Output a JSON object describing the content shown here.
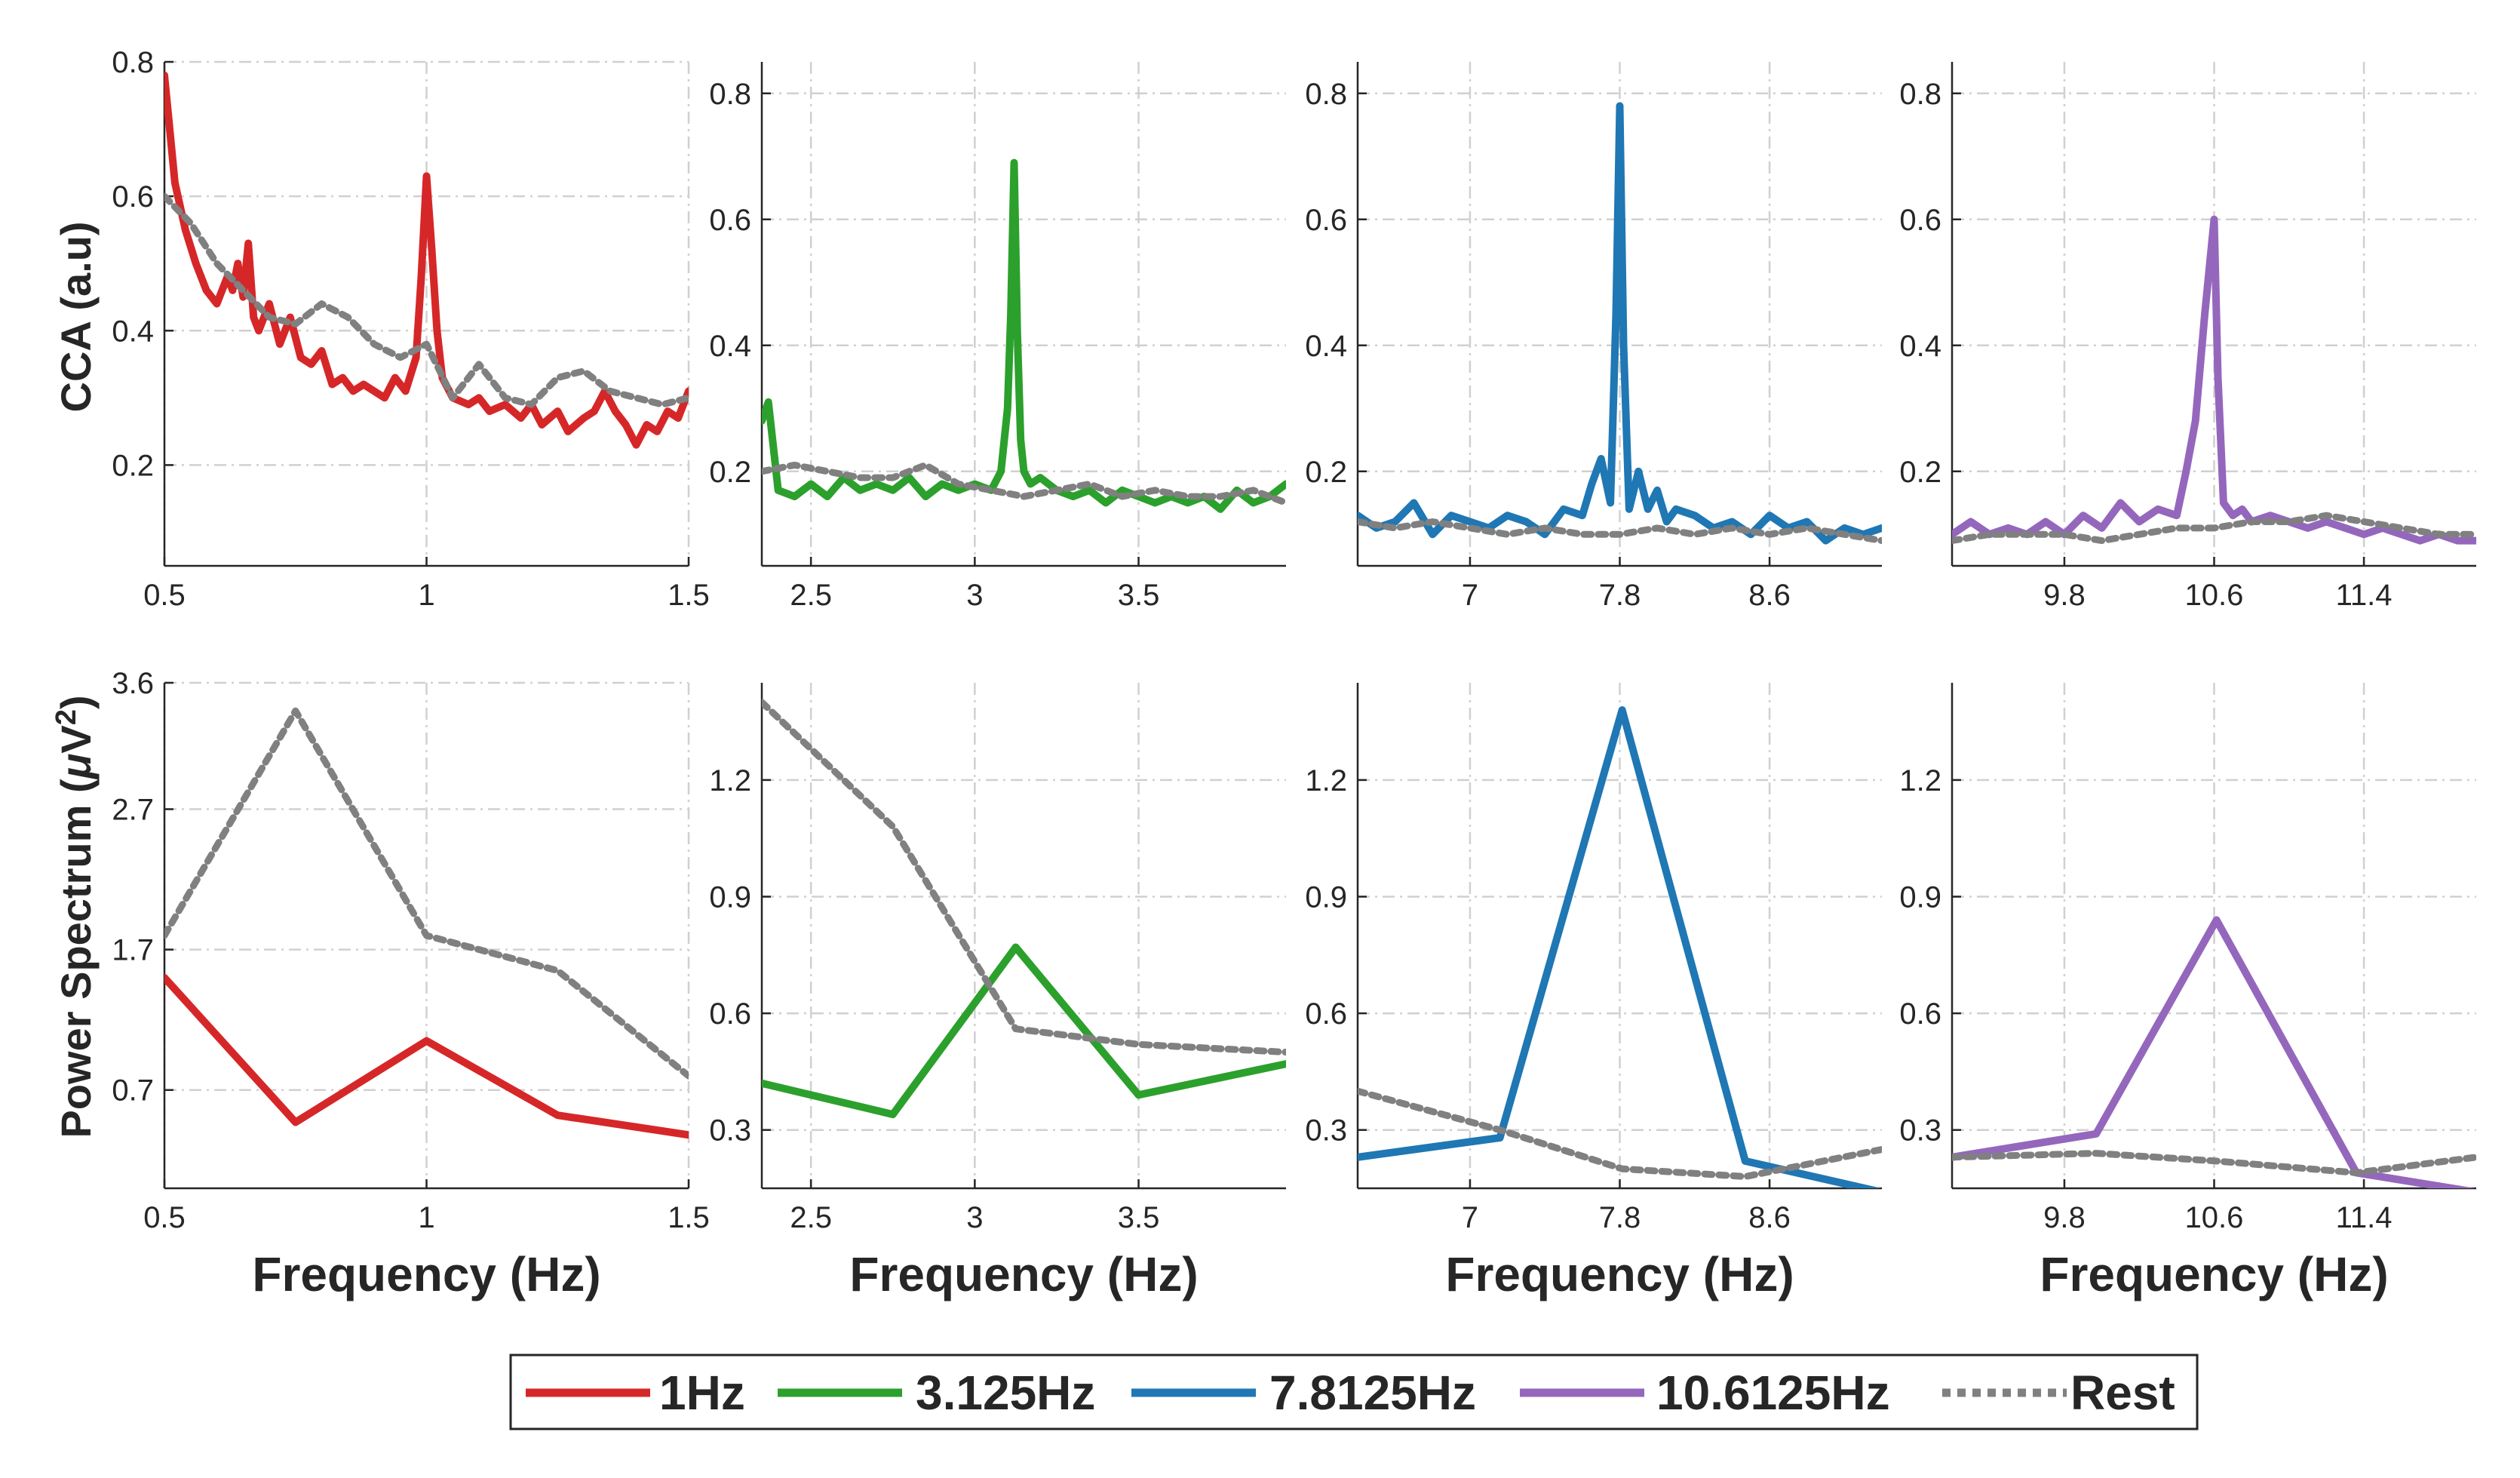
{
  "figure": {
    "cca_ylabel": "CCA (a.u)",
    "ps_ylabel_main": "Power Spectrum (",
    "ps_ylabel_mu": "μ",
    "ps_ylabel_unit": "V",
    "ps_ylabel_sup": "2",
    "ps_ylabel_close": ")"
  },
  "legend": {
    "items": [
      {
        "label": "1Hz",
        "color": "#d62728",
        "style": "solid"
      },
      {
        "label": "3.125Hz",
        "color": "#2ca02c",
        "style": "solid"
      },
      {
        "label": "7.8125Hz",
        "color": "#1f77b4",
        "style": "solid"
      },
      {
        "label": "10.6125Hz",
        "color": "#9467bd",
        "style": "solid"
      },
      {
        "label": "Rest",
        "color": "#808080",
        "style": "dotted"
      }
    ]
  },
  "chart_data": [
    {
      "type": "line",
      "row": "CCA",
      "color": "#d62728",
      "xlabel": "",
      "ylabel": "CCA (a.u)",
      "xlim": [
        0.5,
        1.5
      ],
      "ylim": [
        0.05,
        0.8
      ],
      "xticks": [
        0.5,
        1,
        1.5
      ],
      "xticklabels": [
        "0.5",
        "1",
        "1.5"
      ],
      "yticks": [
        0.2,
        0.4,
        0.6,
        0.8
      ],
      "yticklabels": [
        "0.2",
        "0.4",
        "0.6",
        "0.8"
      ],
      "series": [
        {
          "name": "1Hz",
          "x": [
            0.5,
            0.51,
            0.52,
            0.54,
            0.56,
            0.58,
            0.6,
            0.62,
            0.63,
            0.64,
            0.65,
            0.66,
            0.67,
            0.68,
            0.7,
            0.72,
            0.74,
            0.76,
            0.78,
            0.8,
            0.82,
            0.84,
            0.86,
            0.88,
            0.9,
            0.92,
            0.94,
            0.96,
            0.98,
            0.99,
            1.0,
            1.01,
            1.02,
            1.03,
            1.05,
            1.08,
            1.1,
            1.12,
            1.15,
            1.18,
            1.2,
            1.22,
            1.25,
            1.27,
            1.3,
            1.32,
            1.34,
            1.36,
            1.38,
            1.4,
            1.42,
            1.44,
            1.46,
            1.48,
            1.5
          ],
          "y": [
            0.78,
            0.7,
            0.62,
            0.55,
            0.5,
            0.46,
            0.44,
            0.48,
            0.46,
            0.5,
            0.45,
            0.53,
            0.42,
            0.4,
            0.44,
            0.38,
            0.42,
            0.36,
            0.35,
            0.37,
            0.32,
            0.33,
            0.31,
            0.32,
            0.31,
            0.3,
            0.33,
            0.31,
            0.36,
            0.48,
            0.63,
            0.52,
            0.4,
            0.33,
            0.3,
            0.29,
            0.3,
            0.28,
            0.29,
            0.27,
            0.29,
            0.26,
            0.28,
            0.25,
            0.27,
            0.28,
            0.31,
            0.28,
            0.26,
            0.23,
            0.26,
            0.25,
            0.28,
            0.27,
            0.31
          ]
        },
        {
          "name": "Rest",
          "x": [
            0.5,
            0.55,
            0.6,
            0.65,
            0.7,
            0.75,
            0.8,
            0.85,
            0.9,
            0.95,
            1.0,
            1.05,
            1.1,
            1.15,
            1.2,
            1.25,
            1.3,
            1.35,
            1.4,
            1.45,
            1.5
          ],
          "y": [
            0.6,
            0.56,
            0.5,
            0.46,
            0.42,
            0.41,
            0.44,
            0.42,
            0.38,
            0.36,
            0.38,
            0.3,
            0.35,
            0.3,
            0.29,
            0.33,
            0.34,
            0.31,
            0.3,
            0.29,
            0.3
          ]
        }
      ]
    },
    {
      "type": "line",
      "row": "CCA",
      "color": "#2ca02c",
      "xlabel": "",
      "ylabel": "",
      "xlim": [
        2.35,
        3.95
      ],
      "ylim": [
        0.05,
        0.85
      ],
      "xticks": [
        2.5,
        3,
        3.5
      ],
      "xticklabels": [
        "2.5",
        "3",
        "3.5"
      ],
      "yticks": [
        0.2,
        0.4,
        0.6,
        0.8
      ],
      "yticklabels": [
        "0.2",
        "0.4",
        "0.6",
        "0.8"
      ],
      "series": [
        {
          "name": "3.125Hz",
          "x": [
            2.35,
            2.37,
            2.4,
            2.45,
            2.5,
            2.55,
            2.6,
            2.65,
            2.7,
            2.75,
            2.8,
            2.85,
            2.9,
            2.95,
            3.0,
            3.05,
            3.08,
            3.1,
            3.11,
            3.12,
            3.13,
            3.14,
            3.15,
            3.17,
            3.2,
            3.25,
            3.3,
            3.35,
            3.4,
            3.45,
            3.5,
            3.55,
            3.6,
            3.65,
            3.7,
            3.75,
            3.8,
            3.85,
            3.9,
            3.95
          ],
          "y": [
            0.28,
            0.31,
            0.17,
            0.16,
            0.18,
            0.16,
            0.19,
            0.17,
            0.18,
            0.17,
            0.19,
            0.16,
            0.18,
            0.17,
            0.18,
            0.17,
            0.2,
            0.3,
            0.45,
            0.69,
            0.42,
            0.25,
            0.2,
            0.18,
            0.19,
            0.17,
            0.16,
            0.17,
            0.15,
            0.17,
            0.16,
            0.15,
            0.16,
            0.15,
            0.16,
            0.14,
            0.17,
            0.15,
            0.16,
            0.18
          ]
        },
        {
          "name": "Rest",
          "x": [
            2.35,
            2.45,
            2.55,
            2.65,
            2.75,
            2.85,
            2.95,
            3.05,
            3.15,
            3.25,
            3.35,
            3.45,
            3.55,
            3.65,
            3.75,
            3.85,
            3.95
          ],
          "y": [
            0.2,
            0.21,
            0.2,
            0.19,
            0.19,
            0.21,
            0.18,
            0.17,
            0.16,
            0.17,
            0.18,
            0.16,
            0.17,
            0.16,
            0.16,
            0.17,
            0.15
          ]
        }
      ]
    },
    {
      "type": "line",
      "row": "CCA",
      "color": "#1f77b4",
      "xlabel": "",
      "ylabel": "",
      "xlim": [
        6.4,
        9.2
      ],
      "ylim": [
        0.05,
        0.85
      ],
      "xticks": [
        7,
        7.8,
        8.6
      ],
      "xticklabels": [
        "7",
        "7.8",
        "8.6"
      ],
      "yticks": [
        0.2,
        0.4,
        0.6,
        0.8
      ],
      "yticklabels": [
        "0.2",
        "0.4",
        "0.6",
        "0.8"
      ],
      "series": [
        {
          "name": "7.8125Hz",
          "x": [
            6.4,
            6.5,
            6.6,
            6.7,
            6.8,
            6.9,
            7.0,
            7.1,
            7.2,
            7.3,
            7.4,
            7.5,
            7.6,
            7.65,
            7.7,
            7.75,
            7.78,
            7.8,
            7.82,
            7.85,
            7.9,
            7.95,
            8.0,
            8.05,
            8.1,
            8.2,
            8.3,
            8.4,
            8.5,
            8.6,
            8.7,
            8.8,
            8.9,
            9.0,
            9.1,
            9.2
          ],
          "y": [
            0.13,
            0.11,
            0.12,
            0.15,
            0.1,
            0.13,
            0.12,
            0.11,
            0.13,
            0.12,
            0.1,
            0.14,
            0.13,
            0.18,
            0.22,
            0.15,
            0.45,
            0.78,
            0.4,
            0.14,
            0.2,
            0.14,
            0.17,
            0.12,
            0.14,
            0.13,
            0.11,
            0.12,
            0.1,
            0.13,
            0.11,
            0.12,
            0.09,
            0.11,
            0.1,
            0.11
          ]
        },
        {
          "name": "Rest",
          "x": [
            6.4,
            6.6,
            6.8,
            7.0,
            7.2,
            7.4,
            7.6,
            7.8,
            8.0,
            8.2,
            8.4,
            8.6,
            8.8,
            9.0,
            9.2
          ],
          "y": [
            0.12,
            0.11,
            0.12,
            0.11,
            0.1,
            0.11,
            0.1,
            0.1,
            0.11,
            0.1,
            0.11,
            0.1,
            0.11,
            0.1,
            0.09
          ]
        }
      ]
    },
    {
      "type": "line",
      "row": "CCA",
      "color": "#9467bd",
      "xlabel": "",
      "ylabel": "",
      "xlim": [
        9.2,
        12.0
      ],
      "ylim": [
        0.05,
        0.85
      ],
      "xticks": [
        9.8,
        10.6,
        11.4
      ],
      "xticklabels": [
        "9.8",
        "10.6",
        "11.4"
      ],
      "yticks": [
        0.2,
        0.4,
        0.6,
        0.8
      ],
      "yticklabels": [
        "0.2",
        "0.4",
        "0.6",
        "0.8"
      ],
      "series": [
        {
          "name": "10.6125Hz",
          "x": [
            9.2,
            9.3,
            9.4,
            9.5,
            9.6,
            9.7,
            9.8,
            9.9,
            10.0,
            10.1,
            10.2,
            10.3,
            10.4,
            10.45,
            10.5,
            10.55,
            10.6,
            10.62,
            10.65,
            10.7,
            10.75,
            10.8,
            10.9,
            11.0,
            11.1,
            11.2,
            11.3,
            11.4,
            11.5,
            11.6,
            11.7,
            11.8,
            11.9,
            12.0
          ],
          "y": [
            0.1,
            0.12,
            0.1,
            0.11,
            0.1,
            0.12,
            0.1,
            0.13,
            0.11,
            0.15,
            0.12,
            0.14,
            0.13,
            0.2,
            0.28,
            0.45,
            0.6,
            0.35,
            0.15,
            0.13,
            0.14,
            0.12,
            0.13,
            0.12,
            0.11,
            0.12,
            0.11,
            0.1,
            0.11,
            0.1,
            0.09,
            0.1,
            0.09,
            0.09
          ]
        },
        {
          "name": "Rest",
          "x": [
            9.2,
            9.4,
            9.6,
            9.8,
            10.0,
            10.2,
            10.4,
            10.6,
            10.8,
            11.0,
            11.2,
            11.4,
            11.6,
            11.8,
            12.0
          ],
          "y": [
            0.09,
            0.1,
            0.1,
            0.1,
            0.09,
            0.1,
            0.11,
            0.11,
            0.12,
            0.12,
            0.13,
            0.12,
            0.11,
            0.1,
            0.1
          ]
        }
      ]
    },
    {
      "type": "line",
      "row": "PowerSpectrum",
      "color": "#d62728",
      "xlabel": "Frequency (Hz)",
      "ylabel": "Power Spectrum (μV^2)",
      "xlim": [
        0.5,
        1.5
      ],
      "ylim": [
        0,
        3.6
      ],
      "xticks": [
        0.5,
        1,
        1.5
      ],
      "xticklabels": [
        "0.5",
        "1",
        "1.5"
      ],
      "yticks": [
        0.7,
        1.7,
        2.7,
        3.6
      ],
      "yticklabels": [
        "0.7",
        "1.7",
        "2.7",
        "3.6"
      ],
      "series": [
        {
          "name": "1Hz",
          "x": [
            0.5,
            0.75,
            1.0,
            1.25,
            1.5
          ],
          "y": [
            1.5,
            0.47,
            1.05,
            0.52,
            0.38
          ]
        },
        {
          "name": "Rest",
          "x": [
            0.5,
            0.75,
            1.0,
            1.25,
            1.5
          ],
          "y": [
            1.8,
            3.4,
            1.8,
            1.55,
            0.8
          ]
        }
      ]
    },
    {
      "type": "line",
      "row": "PowerSpectrum",
      "color": "#2ca02c",
      "xlabel": "Frequency (Hz)",
      "ylabel": "",
      "xlim": [
        2.35,
        3.95
      ],
      "ylim": [
        0.15,
        1.45
      ],
      "xticks": [
        2.5,
        3,
        3.5
      ],
      "xticklabels": [
        "2.5",
        "3",
        "3.5"
      ],
      "yticks": [
        0.3,
        0.6,
        0.9,
        1.2
      ],
      "yticklabels": [
        "0.3",
        "0.6",
        "0.9",
        "1.2"
      ],
      "series": [
        {
          "name": "3.125Hz",
          "x": [
            2.35,
            2.75,
            3.125,
            3.5,
            3.95
          ],
          "y": [
            0.42,
            0.34,
            0.77,
            0.39,
            0.47
          ]
        },
        {
          "name": "Rest",
          "x": [
            2.35,
            2.75,
            3.125,
            3.5,
            3.95
          ],
          "y": [
            1.4,
            1.08,
            0.56,
            0.52,
            0.5
          ]
        }
      ]
    },
    {
      "type": "line",
      "row": "PowerSpectrum",
      "color": "#1f77b4",
      "xlabel": "Frequency (Hz)",
      "ylabel": "",
      "xlim": [
        6.4,
        9.2
      ],
      "ylim": [
        0.15,
        1.45
      ],
      "xticks": [
        7,
        7.8,
        8.6
      ],
      "xticklabels": [
        "7",
        "7.8",
        "8.6"
      ],
      "yticks": [
        0.3,
        0.6,
        0.9,
        1.2
      ],
      "yticklabels": [
        "0.3",
        "0.6",
        "0.9",
        "1.2"
      ],
      "series": [
        {
          "name": "7.8125Hz",
          "x": [
            6.4,
            7.16,
            7.8125,
            8.47,
            9.2
          ],
          "y": [
            0.23,
            0.28,
            1.38,
            0.22,
            0.14
          ]
        },
        {
          "name": "Rest",
          "x": [
            6.4,
            7.16,
            7.8125,
            8.47,
            9.2
          ],
          "y": [
            0.4,
            0.3,
            0.2,
            0.18,
            0.25
          ]
        }
      ]
    },
    {
      "type": "line",
      "row": "PowerSpectrum",
      "color": "#9467bd",
      "xlabel": "Frequency (Hz)",
      "ylabel": "",
      "xlim": [
        9.2,
        12.0
      ],
      "ylim": [
        0.15,
        1.45
      ],
      "xticks": [
        9.8,
        10.6,
        11.4
      ],
      "xticklabels": [
        "9.8",
        "10.6",
        "11.4"
      ],
      "yticks": [
        0.3,
        0.6,
        0.9,
        1.2
      ],
      "yticklabels": [
        "0.3",
        "0.6",
        "0.9",
        "1.2"
      ],
      "series": [
        {
          "name": "10.6125Hz",
          "x": [
            9.2,
            9.97,
            10.6125,
            11.36,
            12.0
          ],
          "y": [
            0.23,
            0.29,
            0.84,
            0.19,
            0.14
          ]
        },
        {
          "name": "Rest",
          "x": [
            9.2,
            9.97,
            10.6125,
            11.36,
            12.0
          ],
          "y": [
            0.23,
            0.24,
            0.22,
            0.19,
            0.23
          ]
        }
      ]
    }
  ]
}
